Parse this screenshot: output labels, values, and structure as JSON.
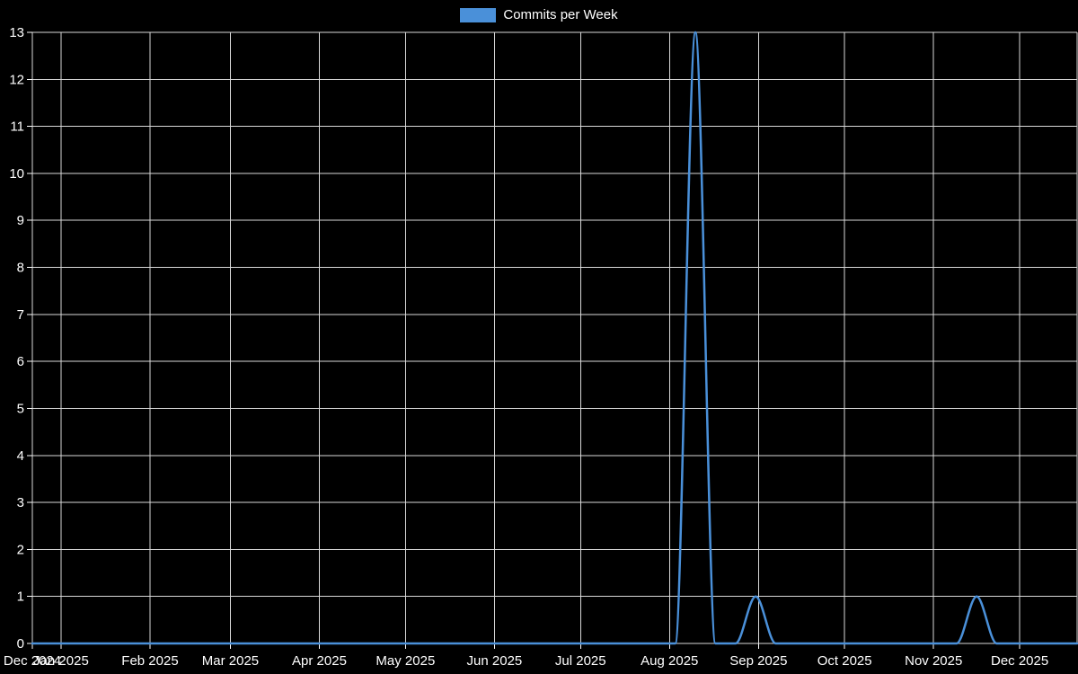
{
  "chart_data": {
    "type": "line",
    "title": "",
    "legend": {
      "position": "top",
      "label": "Commits per Week"
    },
    "style": {
      "background": "#000000",
      "grid_color": "#d9d9d9",
      "axis_color": "#ffffff",
      "text_color": "#ffffff",
      "font_size_px": 15
    },
    "x_axis": {
      "type": "time",
      "start": "2024-12-22",
      "end": "2025-12-21",
      "ticks": [
        {
          "date": "2024-12-22",
          "label": "Dec 2024"
        },
        {
          "date": "2025-01-01",
          "label": "Jan 2025"
        },
        {
          "date": "2025-02-01",
          "label": "Feb 2025"
        },
        {
          "date": "2025-03-01",
          "label": "Mar 2025"
        },
        {
          "date": "2025-04-01",
          "label": "Apr 2025"
        },
        {
          "date": "2025-05-01",
          "label": "May 2025"
        },
        {
          "date": "2025-06-01",
          "label": "Jun 2025"
        },
        {
          "date": "2025-07-01",
          "label": "Jul 2025"
        },
        {
          "date": "2025-08-01",
          "label": "Aug 2025"
        },
        {
          "date": "2025-09-01",
          "label": "Sep 2025"
        },
        {
          "date": "2025-10-01",
          "label": "Oct 2025"
        },
        {
          "date": "2025-11-01",
          "label": "Nov 2025"
        },
        {
          "date": "2025-12-01",
          "label": "Dec 2025"
        }
      ]
    },
    "y_axis": {
      "min": 0,
      "max": 13,
      "tick_step": 1,
      "tick_labels": [
        "0",
        "1",
        "2",
        "3",
        "4",
        "5",
        "6",
        "7",
        "8",
        "9",
        "10",
        "11",
        "12",
        "13"
      ]
    },
    "grid": true,
    "series": [
      {
        "name": "Commits per Week",
        "color": "#4a90d9",
        "start_date": "2024-12-22",
        "interval_days": 7,
        "values": [
          0,
          0,
          0,
          0,
          0,
          0,
          0,
          0,
          0,
          0,
          0,
          0,
          0,
          0,
          0,
          0,
          0,
          0,
          0,
          0,
          0,
          0,
          0,
          0,
          0,
          0,
          0,
          0,
          0,
          0,
          0,
          0,
          0,
          13,
          0,
          0,
          1,
          0,
          0,
          0,
          0,
          0,
          0,
          0,
          0,
          0,
          0,
          1,
          0,
          0,
          0,
          0,
          0
        ],
        "peaks_note_dates": {
          "2025-08-10": 13,
          "2025-08-31": 1,
          "2025-11-16": 1
        }
      }
    ]
  }
}
